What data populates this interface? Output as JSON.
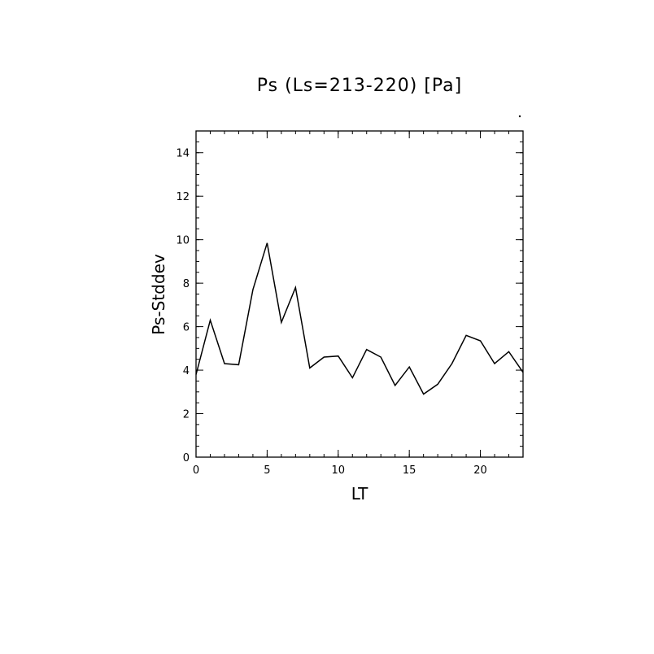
{
  "chart_data": {
    "type": "line",
    "title": "Ps (Ls=213-220) [Pa]",
    "xlabel": "LT",
    "ylabel": "Ps-Stddev",
    "xlim": [
      0,
      23
    ],
    "ylim": [
      0,
      15
    ],
    "x_ticks": [
      0,
      5,
      10,
      15,
      20
    ],
    "y_ticks": [
      0,
      2,
      4,
      6,
      8,
      10,
      12,
      14
    ],
    "grid": false,
    "series": [
      {
        "x": [
          0,
          1,
          2,
          3,
          4,
          5,
          6,
          7,
          8,
          9,
          10,
          11,
          12,
          13,
          14,
          15,
          16,
          17,
          18,
          19,
          20,
          21,
          22,
          23
        ],
        "values": [
          3.8,
          6.3,
          4.3,
          4.25,
          7.7,
          9.85,
          6.2,
          7.8,
          4.1,
          4.6,
          4.65,
          3.65,
          4.95,
          4.6,
          3.3,
          4.15,
          2.9,
          3.35,
          4.3,
          5.6,
          5.35,
          4.3,
          4.85,
          3.9
        ]
      }
    ]
  }
}
